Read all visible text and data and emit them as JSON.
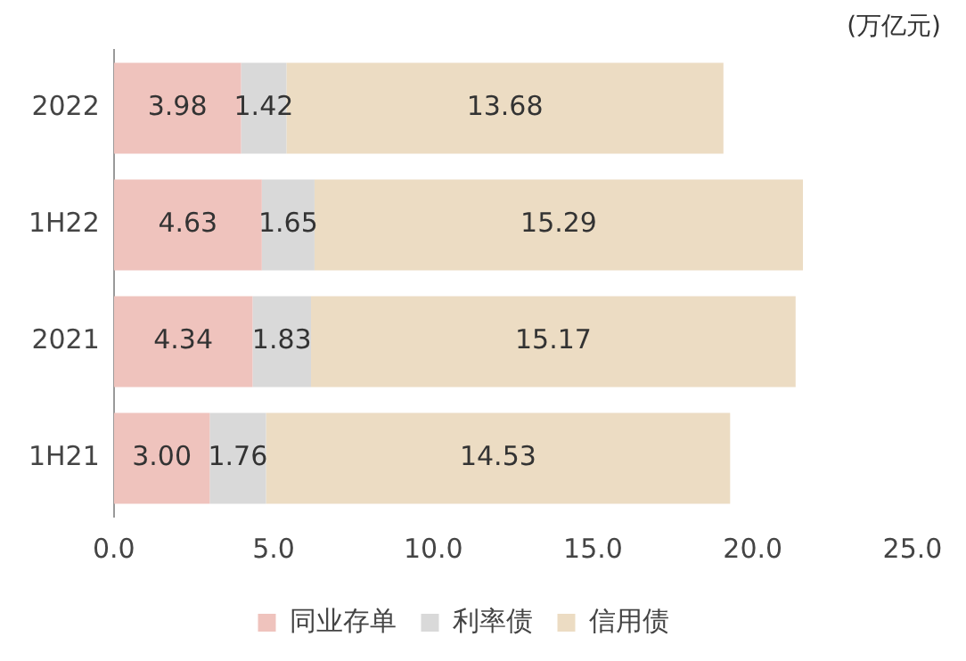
{
  "chart_data": {
    "type": "bar",
    "orientation": "horizontal",
    "stacked": true,
    "categories": [
      "2022",
      "1H22",
      "2021",
      "1H21"
    ],
    "series": [
      {
        "name": "同业存单",
        "color": "#efc3bd",
        "values": [
          3.98,
          4.63,
          4.34,
          3.0
        ],
        "value_labels": [
          "3.98",
          "4.63",
          "4.34",
          "3.00"
        ]
      },
      {
        "name": "利率债",
        "color": "#d9d9d9",
        "values": [
          1.42,
          1.65,
          1.83,
          1.76
        ],
        "value_labels": [
          "1.42",
          "1.65",
          "1.83",
          "1.76"
        ]
      },
      {
        "name": "信用债",
        "color": "#ecdcc3",
        "values": [
          13.68,
          15.29,
          15.17,
          14.53
        ],
        "value_labels": [
          "13.68",
          "15.29",
          "15.17",
          "14.53"
        ]
      }
    ],
    "xlim": [
      0,
      25
    ],
    "xticks": [
      {
        "value": 0,
        "label": "0.0"
      },
      {
        "value": 5,
        "label": "5.0"
      },
      {
        "value": 10,
        "label": "10.0"
      },
      {
        "value": 15,
        "label": "15.0"
      },
      {
        "value": 20,
        "label": "20.0"
      },
      {
        "value": 25,
        "label": "25.0"
      }
    ],
    "grid": false,
    "legend": "bottom",
    "annotations": [
      "(万亿元)"
    ]
  }
}
